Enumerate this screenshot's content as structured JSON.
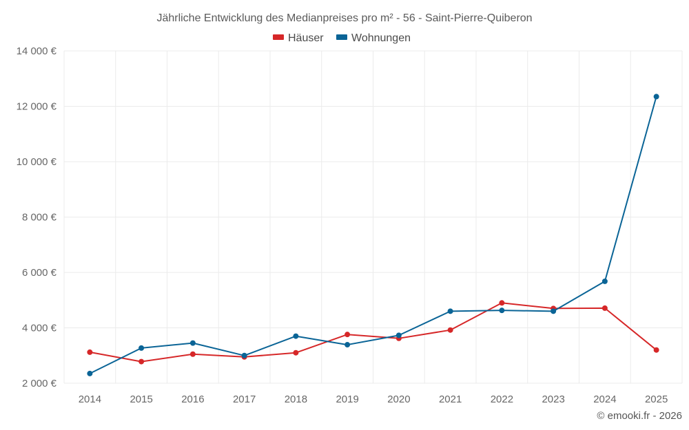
{
  "chart_data": {
    "type": "line",
    "title": "Jährliche Entwicklung des Medianpreises pro m² - 56 - Saint-Pierre-Quiberon",
    "xlabel": "",
    "ylabel": "",
    "categories": [
      "2014",
      "2015",
      "2016",
      "2017",
      "2018",
      "2019",
      "2020",
      "2021",
      "2022",
      "2023",
      "2024",
      "2025"
    ],
    "ylim": [
      2000,
      14000
    ],
    "yticks": [
      2000,
      4000,
      6000,
      8000,
      10000,
      12000,
      14000
    ],
    "ytick_labels": [
      "2 000 €",
      "4 000 €",
      "6 000 €",
      "8 000 €",
      "10 000 €",
      "12 000 €",
      "14 000 €"
    ],
    "grid": true,
    "legend_position": "top-center",
    "series": [
      {
        "name": "Häuser",
        "color": "#d62728",
        "values": [
          3120,
          2780,
          3050,
          2950,
          3100,
          3760,
          3620,
          3920,
          4900,
          4700,
          4710,
          3200
        ]
      },
      {
        "name": "Wohnungen",
        "color": "#0a6496",
        "values": [
          2350,
          3270,
          3450,
          3000,
          3700,
          3390,
          3730,
          4600,
          4630,
          4600,
          5680,
          12350
        ]
      }
    ]
  },
  "credit": "© emooki.fr - 2026"
}
